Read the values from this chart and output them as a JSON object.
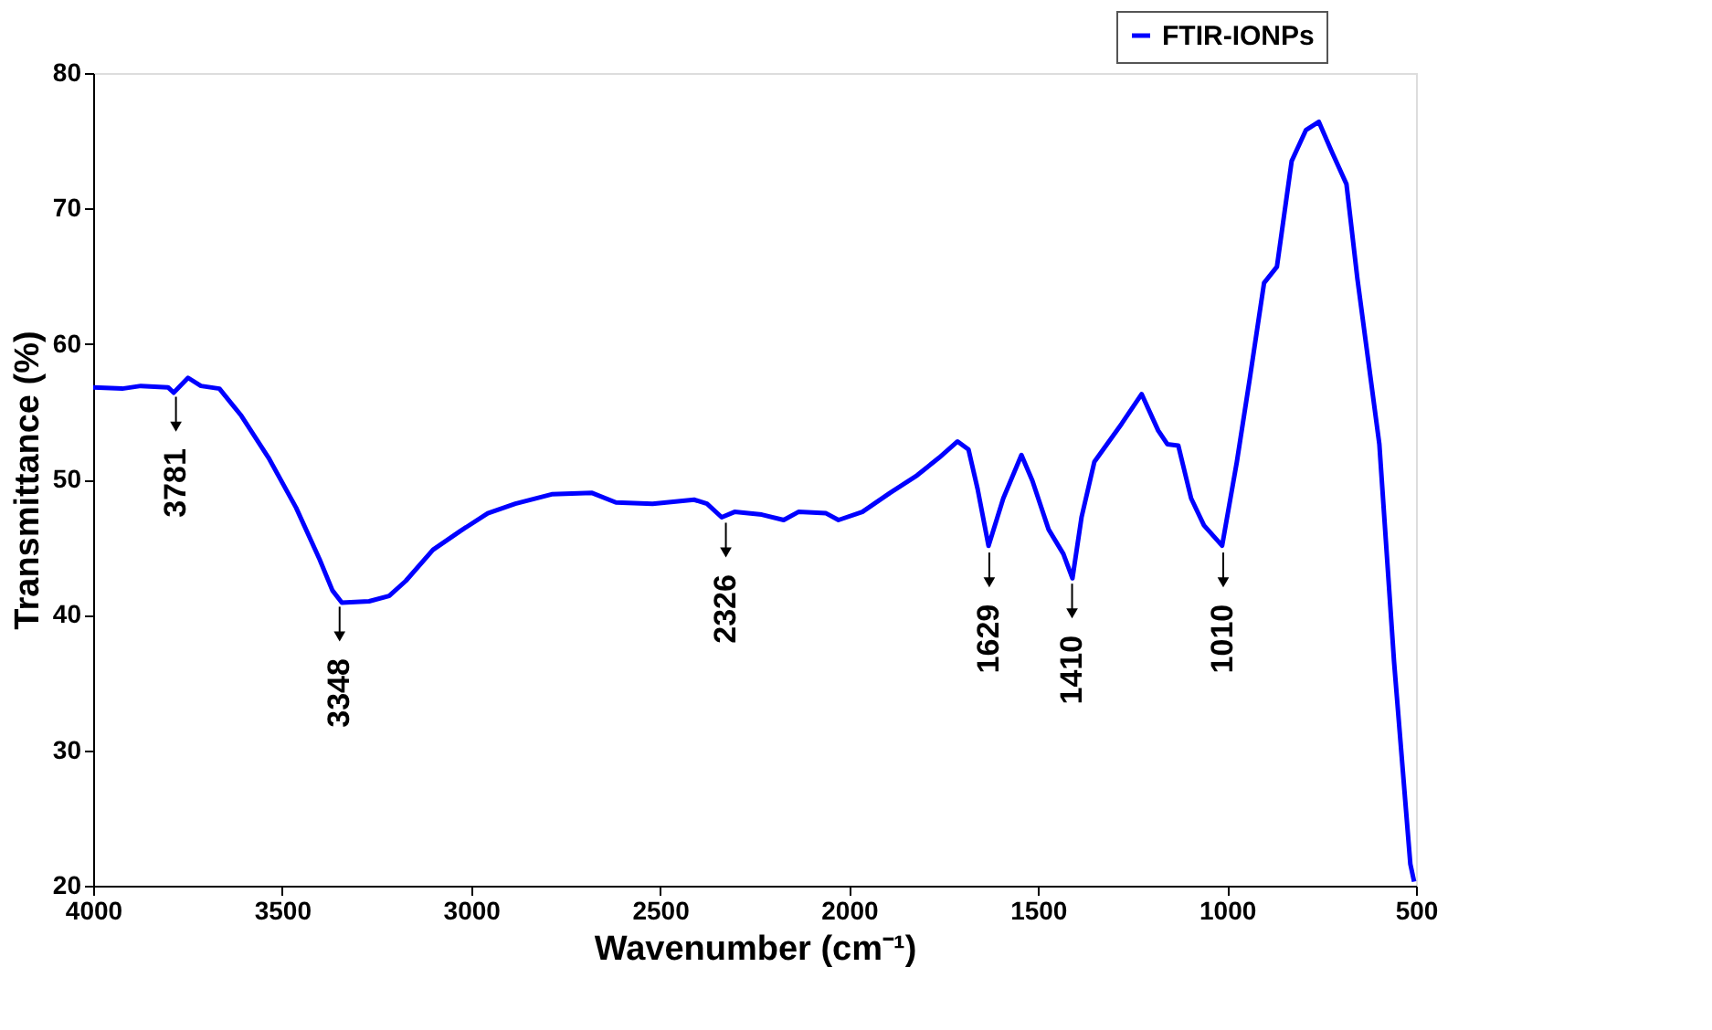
{
  "chart_data": {
    "type": "line",
    "xlabel": "Wavenumber (cm⁻¹)",
    "ylabel": "Transmittance (%)",
    "xlim": [
      4000,
      500
    ],
    "ylim": [
      20,
      80
    ],
    "xticks": [
      4000,
      3500,
      3000,
      2500,
      2000,
      1500,
      1000,
      500
    ],
    "yticks": [
      20,
      30,
      40,
      50,
      60,
      70,
      80
    ],
    "grid": false,
    "legend": "top right",
    "marker": "none",
    "line_style": "solid",
    "series": [
      {
        "name": "FTIR-IONPs",
        "color": "#0000ff",
        "x": [
          4000,
          3923,
          3874,
          3802,
          3787,
          3749,
          3715,
          3666,
          3608,
          3536,
          3463,
          3401,
          3367,
          3342,
          3270,
          3217,
          3173,
          3101,
          3028,
          2956,
          2883,
          2787,
          2680,
          2617,
          2520,
          2410,
          2376,
          2337,
          2303,
          2231,
          2173,
          2134,
          2061,
          2028,
          1965,
          1892,
          1820,
          1762,
          1713,
          1684,
          1660,
          1631,
          1592,
          1544,
          1515,
          1472,
          1433,
          1409,
          1385,
          1351,
          1279,
          1226,
          1182,
          1158,
          1129,
          1095,
          1061,
          1013,
          974,
          940,
          902,
          868,
          829,
          791,
          757,
          723,
          684,
          655,
          597,
          558,
          515,
          505
        ],
        "values": [
          56.8,
          56.7,
          56.9,
          56.8,
          56.4,
          57.5,
          56.9,
          56.7,
          54.7,
          51.6,
          47.9,
          44.1,
          41.8,
          40.9,
          41.0,
          41.4,
          42.5,
          44.8,
          46.2,
          47.5,
          48.2,
          48.9,
          49.0,
          48.3,
          48.2,
          48.5,
          48.2,
          47.2,
          47.6,
          47.4,
          47.0,
          47.6,
          47.5,
          47.0,
          47.6,
          49.0,
          50.3,
          51.6,
          52.8,
          52.2,
          49.3,
          45.1,
          48.6,
          51.8,
          49.9,
          46.3,
          44.5,
          42.7,
          47.2,
          51.3,
          54.1,
          56.3,
          53.6,
          52.6,
          52.5,
          48.6,
          46.6,
          45.1,
          51.3,
          57.4,
          64.5,
          65.7,
          73.5,
          75.8,
          76.4,
          74.2,
          71.8,
          64.8,
          52.6,
          36.5,
          21.6,
          20.3
        ]
      }
    ],
    "annotations": [
      {
        "text": "3781",
        "x": 3781,
        "y": 56.5
      },
      {
        "text": "3348",
        "x": 3348,
        "y": 41.0
      },
      {
        "text": "2326",
        "x": 2326,
        "y": 47.2
      },
      {
        "text": "1629",
        "x": 1629,
        "y": 45.0
      },
      {
        "text": "1410",
        "x": 1410,
        "y": 42.7
      },
      {
        "text": "1010",
        "x": 1010,
        "y": 45.0
      }
    ]
  }
}
